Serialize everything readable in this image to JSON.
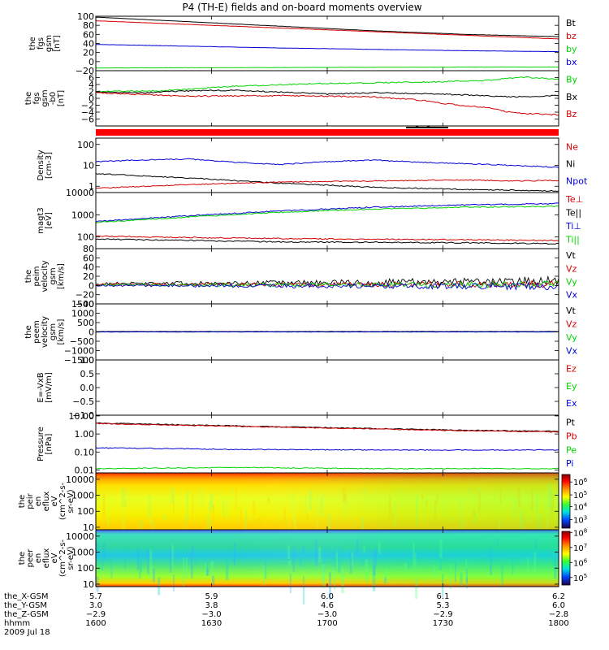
{
  "title": "P4 (TH-E) fields and on-board moments overview",
  "colors": {
    "black": "#000000",
    "red": "#d40000",
    "green": "#00d400",
    "blue": "#0000d4",
    "bar_red": "#ff0000"
  },
  "chart_data": [
    {
      "id": "fgs-gsm",
      "type": "line",
      "ylabel": [
        "the",
        "fgs",
        "gsm",
        "[nT]"
      ],
      "ylim": [
        -20,
        100
      ],
      "yticks": [
        {
          "v": 100,
          "label": "100"
        },
        {
          "v": 80,
          "label": "80"
        },
        {
          "v": 60,
          "label": "60"
        },
        {
          "v": 40,
          "label": "40"
        },
        {
          "v": 20,
          "label": "20"
        },
        {
          "v": 0,
          "label": "0"
        },
        {
          "v": -20,
          "label": "−20"
        }
      ],
      "legend": [
        {
          "name": "Bt",
          "color": "black"
        },
        {
          "name": "bz",
          "color": "red"
        },
        {
          "name": "by",
          "color": "green"
        },
        {
          "name": "bx",
          "color": "blue"
        }
      ],
      "series": [
        {
          "name": "Bt",
          "color": "black",
          "x": [
            0,
            0.2,
            0.4,
            0.6,
            0.8,
            1
          ],
          "y": [
            98,
            88,
            78,
            68,
            60,
            55
          ]
        },
        {
          "name": "bz",
          "color": "red",
          "x": [
            0,
            0.2,
            0.4,
            0.6,
            0.8,
            0.9,
            1
          ],
          "y": [
            90,
            82,
            74,
            66,
            58,
            54,
            50
          ]
        },
        {
          "name": "by",
          "color": "green",
          "x": [
            0,
            0.4,
            0.8,
            1
          ],
          "y": [
            -14,
            -13,
            -12,
            -12
          ]
        },
        {
          "name": "bx",
          "color": "blue",
          "x": [
            0,
            0.2,
            0.4,
            0.6,
            0.8,
            1
          ],
          "y": [
            38,
            34,
            30,
            27,
            24,
            22
          ]
        }
      ]
    },
    {
      "id": "fgs-dsl",
      "type": "line",
      "ylabel": [
        "the",
        "fgs",
        "gsm",
        "-b0",
        "[nT]"
      ],
      "ylim": [
        -8,
        8
      ],
      "yticks": [
        {
          "v": 6,
          "label": "6"
        },
        {
          "v": 4,
          "label": "4"
        },
        {
          "v": 2,
          "label": "2"
        },
        {
          "v": 0,
          "label": "0"
        },
        {
          "v": -2,
          "label": "−2"
        },
        {
          "v": -4,
          "label": "−4"
        },
        {
          "v": -6,
          "label": "−6"
        }
      ],
      "legend": [
        {
          "name": "By",
          "color": "green"
        },
        {
          "name": "Bx",
          "color": "black"
        },
        {
          "name": "Bz",
          "color": "red"
        }
      ],
      "series": [
        {
          "name": "By",
          "color": "green",
          "x": [
            0,
            0.15,
            0.3,
            0.45,
            0.6,
            0.75,
            0.85,
            0.92,
            1
          ],
          "y": [
            2,
            2.2,
            3.5,
            4.2,
            4.5,
            4.8,
            5.2,
            6.2,
            5.5
          ]
        },
        {
          "name": "Bx",
          "color": "black",
          "x": [
            0,
            0.1,
            0.2,
            0.3,
            0.4,
            0.5,
            0.6,
            0.7,
            0.8,
            0.9,
            1
          ],
          "y": [
            1.8,
            1.6,
            2.2,
            2.3,
            1.8,
            1.2,
            1.6,
            1.4,
            1.0,
            0.4,
            0.8
          ]
        },
        {
          "name": "Bz",
          "color": "red",
          "x": [
            0,
            0.2,
            0.4,
            0.6,
            0.7,
            0.75,
            0.85,
            0.9,
            1
          ],
          "y": [
            1.6,
            0.6,
            0.8,
            0.4,
            -0.5,
            -1.5,
            -2.8,
            -4.2,
            -4.8
          ]
        }
      ]
    },
    {
      "id": "mode-bar",
      "type": "bar"
    },
    {
      "id": "density",
      "type": "line",
      "ylabel": [
        "Density",
        "[cm-3]"
      ],
      "yscale": "log",
      "ylim": [
        0.5,
        200
      ],
      "yticks": [
        {
          "v": 100,
          "label": "100"
        },
        {
          "v": 10,
          "label": "10"
        },
        {
          "v": 1,
          "label": "1"
        }
      ],
      "legend": [
        {
          "name": "Ne",
          "color": "red"
        },
        {
          "name": "Ni",
          "color": "black"
        },
        {
          "name": "Npot",
          "color": "blue"
        }
      ],
      "series": [
        {
          "name": "Npot",
          "color": "blue",
          "x": [
            0,
            0.1,
            0.2,
            0.3,
            0.4,
            0.5,
            0.6,
            0.7,
            0.8,
            0.9,
            1
          ],
          "y": [
            15,
            18,
            20,
            14,
            11,
            15,
            18,
            14,
            12,
            10,
            8
          ]
        },
        {
          "name": "Ni",
          "color": "black",
          "x": [
            0,
            0.2,
            0.4,
            0.6,
            0.8,
            1
          ],
          "y": [
            4,
            2.5,
            1.4,
            0.9,
            0.7,
            0.6
          ]
        },
        {
          "name": "Ne",
          "color": "red",
          "x": [
            0,
            0.2,
            0.4,
            0.6,
            0.8,
            0.9,
            1
          ],
          "y": [
            0.8,
            1.2,
            1.6,
            1.8,
            2.0,
            1.8,
            1.9
          ]
        }
      ]
    },
    {
      "id": "temperature",
      "type": "line",
      "ylabel": [
        "magt3",
        "[eV]"
      ],
      "yscale": "log",
      "ylim": [
        30,
        10000
      ],
      "yticks": [
        {
          "v": 10000,
          "label": "10000"
        },
        {
          "v": 1000,
          "label": "1000"
        },
        {
          "v": 100,
          "label": "100"
        }
      ],
      "legend": [
        {
          "name": "Te⊥",
          "color": "red"
        },
        {
          "name": "Te||",
          "color": "black"
        },
        {
          "name": "Ti⊥",
          "color": "blue"
        },
        {
          "name": "Ti||",
          "color": "green"
        }
      ],
      "series": [
        {
          "name": "Ti⊥",
          "color": "blue",
          "x": [
            0,
            0.2,
            0.4,
            0.6,
            0.8,
            1
          ],
          "y": [
            500,
            900,
            1500,
            2200,
            2800,
            3200
          ]
        },
        {
          "name": "Ti||",
          "color": "green",
          "x": [
            0,
            0.2,
            0.4,
            0.6,
            0.8,
            1
          ],
          "y": [
            450,
            800,
            1300,
            1800,
            2200,
            2400
          ]
        },
        {
          "name": "Te⊥",
          "color": "red",
          "x": [
            0,
            0.2,
            0.4,
            0.6,
            0.8,
            1
          ],
          "y": [
            110,
            95,
            85,
            80,
            75,
            70
          ]
        },
        {
          "name": "Te||",
          "color": "black",
          "x": [
            0,
            0.2,
            0.4,
            0.6,
            0.8,
            1
          ],
          "y": [
            80,
            70,
            60,
            58,
            55,
            50
          ]
        }
      ]
    },
    {
      "id": "peim-velocity",
      "type": "line",
      "ylabel": [
        "the",
        "peim",
        "velocity",
        "gsm",
        "[km/s]"
      ],
      "ylim": [
        -40,
        80
      ],
      "yticks": [
        {
          "v": 80,
          "label": "80"
        },
        {
          "v": 60,
          "label": "60"
        },
        {
          "v": 40,
          "label": "40"
        },
        {
          "v": 20,
          "label": "20"
        },
        {
          "v": 0,
          "label": "0"
        },
        {
          "v": -20,
          "label": "−20"
        },
        {
          "v": -40,
          "label": "−40"
        }
      ],
      "legend": [
        {
          "name": "Vt",
          "color": "black"
        },
        {
          "name": "Vz",
          "color": "red"
        },
        {
          "name": "Vy",
          "color": "green"
        },
        {
          "name": "Vx",
          "color": "blue"
        }
      ],
      "series": [
        {
          "name": "Vt",
          "color": "black",
          "x": [
            0,
            0.5,
            1
          ],
          "y": [
            4,
            6,
            10
          ]
        },
        {
          "name": "Vz",
          "color": "red",
          "x": [
            0,
            0.5,
            1
          ],
          "y": [
            2,
            2,
            3
          ]
        },
        {
          "name": "Vy",
          "color": "green",
          "x": [
            0,
            0.5,
            1
          ],
          "y": [
            1,
            1,
            2
          ]
        },
        {
          "name": "Vx",
          "color": "blue",
          "x": [
            0,
            0.5,
            1
          ],
          "y": [
            0,
            -1,
            -2
          ]
        }
      ]
    },
    {
      "id": "peem-velocity",
      "type": "line",
      "ylabel": [
        "the",
        "peem",
        "velocity",
        "gsm",
        "[km/s]"
      ],
      "ylim": [
        -1500,
        1500
      ],
      "yticks": [
        {
          "v": 1500,
          "label": "1500"
        },
        {
          "v": 1000,
          "label": "1000"
        },
        {
          "v": 500,
          "label": "500"
        },
        {
          "v": 0,
          "label": "0"
        },
        {
          "v": -500,
          "label": "−500"
        },
        {
          "v": -1000,
          "label": "−1000"
        },
        {
          "v": -1500,
          "label": "−1500"
        }
      ],
      "legend": [
        {
          "name": "Vt",
          "color": "black"
        },
        {
          "name": "Vz",
          "color": "red"
        },
        {
          "name": "Vy",
          "color": "green"
        },
        {
          "name": "Vx",
          "color": "blue"
        }
      ],
      "series": [
        {
          "name": "Vt",
          "color": "black",
          "x": [
            0,
            1
          ],
          "y": [
            20,
            20
          ]
        },
        {
          "name": "Vz",
          "color": "red",
          "x": [
            0,
            1
          ],
          "y": [
            0,
            0
          ]
        },
        {
          "name": "Vy",
          "color": "green",
          "x": [
            0,
            1
          ],
          "y": [
            0,
            0
          ]
        },
        {
          "name": "Vx",
          "color": "blue",
          "x": [
            0,
            1
          ],
          "y": [
            0,
            0
          ]
        }
      ]
    },
    {
      "id": "e-field",
      "type": "line",
      "ylabel": [
        "E=-VxB",
        "[mV/m]"
      ],
      "ylim": [
        -1,
        1
      ],
      "yticks": [
        {
          "v": 1,
          "label": "1.0"
        },
        {
          "v": 0.5,
          "label": "0.5"
        },
        {
          "v": 0,
          "label": "0.0"
        },
        {
          "v": -0.5,
          "label": "−0.5"
        },
        {
          "v": -1,
          "label": "−1.0"
        }
      ],
      "legend": [
        {
          "name": "Ez",
          "color": "red"
        },
        {
          "name": "Ey",
          "color": "green"
        },
        {
          "name": "Ex",
          "color": "blue"
        }
      ],
      "series": []
    },
    {
      "id": "pressure",
      "type": "line",
      "ylabel": [
        "Pressure",
        "[nPa]"
      ],
      "yscale": "log",
      "ylim": [
        0.007,
        11
      ],
      "yticks": [
        {
          "v": 10,
          "label": "10.00"
        },
        {
          "v": 1,
          "label": "1.00"
        },
        {
          "v": 0.1,
          "label": "0.10"
        },
        {
          "v": 0.01,
          "label": "0.01"
        }
      ],
      "legend": [
        {
          "name": "Pt",
          "color": "black"
        },
        {
          "name": "Pb",
          "color": "red"
        },
        {
          "name": "Pe",
          "color": "green"
        },
        {
          "name": "Pi",
          "color": "blue"
        }
      ],
      "series": [
        {
          "name": "Pt",
          "color": "black",
          "x": [
            0,
            0.2,
            0.4,
            0.6,
            0.8,
            1
          ],
          "y": [
            4.0,
            3.2,
            2.5,
            2.0,
            1.6,
            1.4
          ]
        },
        {
          "name": "Pb",
          "color": "red",
          "x": [
            0,
            0.2,
            0.4,
            0.6,
            0.8,
            1
          ],
          "y": [
            3.8,
            3.0,
            2.4,
            1.9,
            1.5,
            1.3
          ]
        },
        {
          "name": "Pi",
          "color": "blue",
          "x": [
            0,
            0.3,
            0.6,
            1
          ],
          "y": [
            0.17,
            0.14,
            0.13,
            0.13
          ]
        },
        {
          "name": "Pe",
          "color": "green",
          "x": [
            0,
            0.3,
            0.6,
            1
          ],
          "y": [
            0.012,
            0.014,
            0.012,
            0.012
          ]
        }
      ]
    },
    {
      "id": "peir-spec",
      "type": "heatmap",
      "ylabel": [
        "the",
        "peir",
        "en",
        "eflux",
        "eV",
        "(cm^2-s-",
        "sr-eV)"
      ],
      "yscale": "log",
      "ylim": [
        7,
        25000
      ],
      "yticks": [
        {
          "v": 10000,
          "label": "10000"
        },
        {
          "v": 1000,
          "label": "1000"
        },
        {
          "v": 100,
          "label": "100"
        },
        {
          "v": 10,
          "label": "10"
        }
      ],
      "colorbar": {
        "labels": [
          {
            "exp": "6",
            "pos": 0.14
          },
          {
            "exp": "5",
            "pos": 0.38
          },
          {
            "exp": "4",
            "pos": 0.6
          },
          {
            "exp": "3",
            "pos": 0.84
          }
        ],
        "bottom_label": ""
      }
    },
    {
      "id": "peer-spec",
      "type": "heatmap",
      "ylabel": [
        "the",
        "peer",
        "en",
        "eflux",
        "eV",
        "(cm^2-s-",
        "sr-eV)"
      ],
      "yscale": "log",
      "ylim": [
        7,
        25000
      ],
      "yticks": [
        {
          "v": 10000,
          "label": "10000"
        },
        {
          "v": 1000,
          "label": "1000"
        },
        {
          "v": 100,
          "label": "100"
        },
        {
          "v": 10,
          "label": "10"
        }
      ],
      "colorbar": {
        "labels": [
          {
            "exp": "8",
            "pos": 0.02
          },
          {
            "exp": "7",
            "pos": 0.3
          },
          {
            "exp": "6",
            "pos": 0.58
          },
          {
            "exp": "5",
            "pos": 0.86
          }
        ]
      }
    }
  ],
  "bottom_axis": {
    "row_labels": [
      "the_X-GSM",
      "the_Y-GSM",
      "the_Z-GSM",
      "hhmm",
      "2009 Jul 18"
    ],
    "ticks": [
      {
        "pos": 0,
        "x_gsm": "5.7",
        "y_gsm": "3.0",
        "z_gsm": "−2.9",
        "hhmm": "1600"
      },
      {
        "pos": 0.25,
        "x_gsm": "5.9",
        "y_gsm": "3.8",
        "z_gsm": "−3.0",
        "hhmm": "1630"
      },
      {
        "pos": 0.5,
        "x_gsm": "6.0",
        "y_gsm": "4.6",
        "z_gsm": "−3.0",
        "hhmm": "1700"
      },
      {
        "pos": 0.75,
        "x_gsm": "6.1",
        "y_gsm": "5.3",
        "z_gsm": "−2.9",
        "hhmm": "1730"
      },
      {
        "pos": 1,
        "x_gsm": "6.2",
        "y_gsm": "6.0",
        "z_gsm": "−2.8",
        "hhmm": "1800"
      }
    ]
  }
}
